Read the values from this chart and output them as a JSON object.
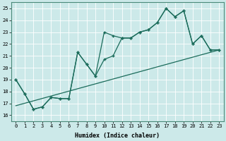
{
  "xlabel": "Humidex (Indice chaleur)",
  "bg_color": "#cce9e9",
  "line_color": "#1a6b5a",
  "grid_color": "#b0d8d8",
  "xlim": [
    -0.5,
    23.5
  ],
  "ylim": [
    15.5,
    25.5
  ],
  "yticks": [
    16,
    17,
    18,
    19,
    20,
    21,
    22,
    23,
    24,
    25
  ],
  "xticks": [
    0,
    1,
    2,
    3,
    4,
    5,
    6,
    7,
    8,
    9,
    10,
    11,
    12,
    13,
    14,
    15,
    16,
    17,
    18,
    19,
    20,
    21,
    22,
    23
  ],
  "line1_x": [
    0,
    1,
    2,
    3,
    4,
    5,
    6,
    7,
    8,
    9,
    10,
    11,
    12,
    13,
    14,
    15,
    16,
    17,
    18,
    19,
    20,
    21,
    22,
    23
  ],
  "line1_y": [
    19.0,
    17.8,
    16.5,
    16.7,
    17.5,
    17.4,
    17.4,
    21.3,
    20.3,
    19.3,
    23.0,
    22.7,
    22.5,
    22.5,
    23.0,
    23.2,
    23.8,
    25.0,
    24.3,
    24.8,
    22.0,
    22.7,
    21.5,
    21.5
  ],
  "line2_x": [
    0,
    1,
    2,
    3,
    4,
    5,
    6,
    7,
    8,
    9,
    10,
    11,
    12,
    13,
    14,
    15,
    16,
    17,
    18,
    19,
    20,
    21,
    22,
    23
  ],
  "line2_y": [
    19.0,
    17.8,
    16.5,
    16.7,
    17.5,
    17.4,
    17.4,
    21.3,
    20.3,
    19.3,
    20.7,
    21.0,
    22.5,
    22.5,
    23.0,
    23.2,
    23.8,
    25.0,
    24.3,
    24.8,
    22.0,
    22.7,
    21.5,
    21.5
  ],
  "line3_x": [
    0,
    23
  ],
  "line3_y": [
    16.8,
    21.5
  ]
}
